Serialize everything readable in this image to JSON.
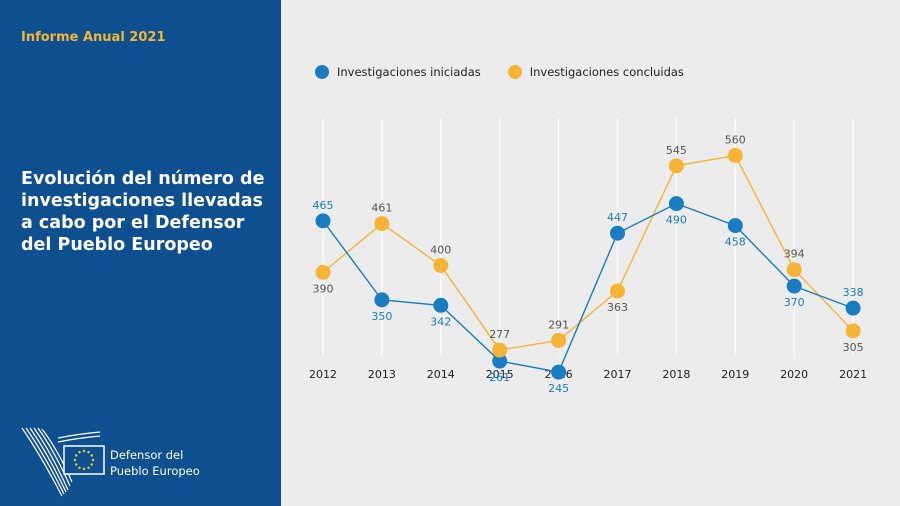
{
  "header": {
    "report_label": "Informe Anual 2021"
  },
  "panel": {
    "title": "Evolución del número de investigaciones llevadas a cabo por el Defensor del Pueblo Europeo"
  },
  "logo": {
    "line1": "Defensor del",
    "line2": "Pueblo Europeo"
  },
  "colors": {
    "panel_bg": "#0e4f8f",
    "accent": "#f2b63a",
    "series_iniciadas": "#1a7cc1",
    "series_concluidas": "#f5b435"
  },
  "chart_data": {
    "type": "line",
    "title": "",
    "xlabel": "",
    "ylabel": "",
    "categories": [
      "2012",
      "2013",
      "2014",
      "2015",
      "2016",
      "2017",
      "2018",
      "2019",
      "2020",
      "2021"
    ],
    "series": [
      {
        "name": "Investigaciones iniciadas",
        "color": "#1a7cc1",
        "values": [
          465,
          350,
          342,
          261,
          245,
          447,
          490,
          458,
          370,
          338
        ]
      },
      {
        "name": "Investigaciones concluidas",
        "color": "#f5b435",
        "values": [
          390,
          461,
          400,
          277,
          291,
          363,
          545,
          560,
          394,
          305
        ]
      }
    ],
    "grid": true,
    "legend": "top-left",
    "data_labels": true
  }
}
